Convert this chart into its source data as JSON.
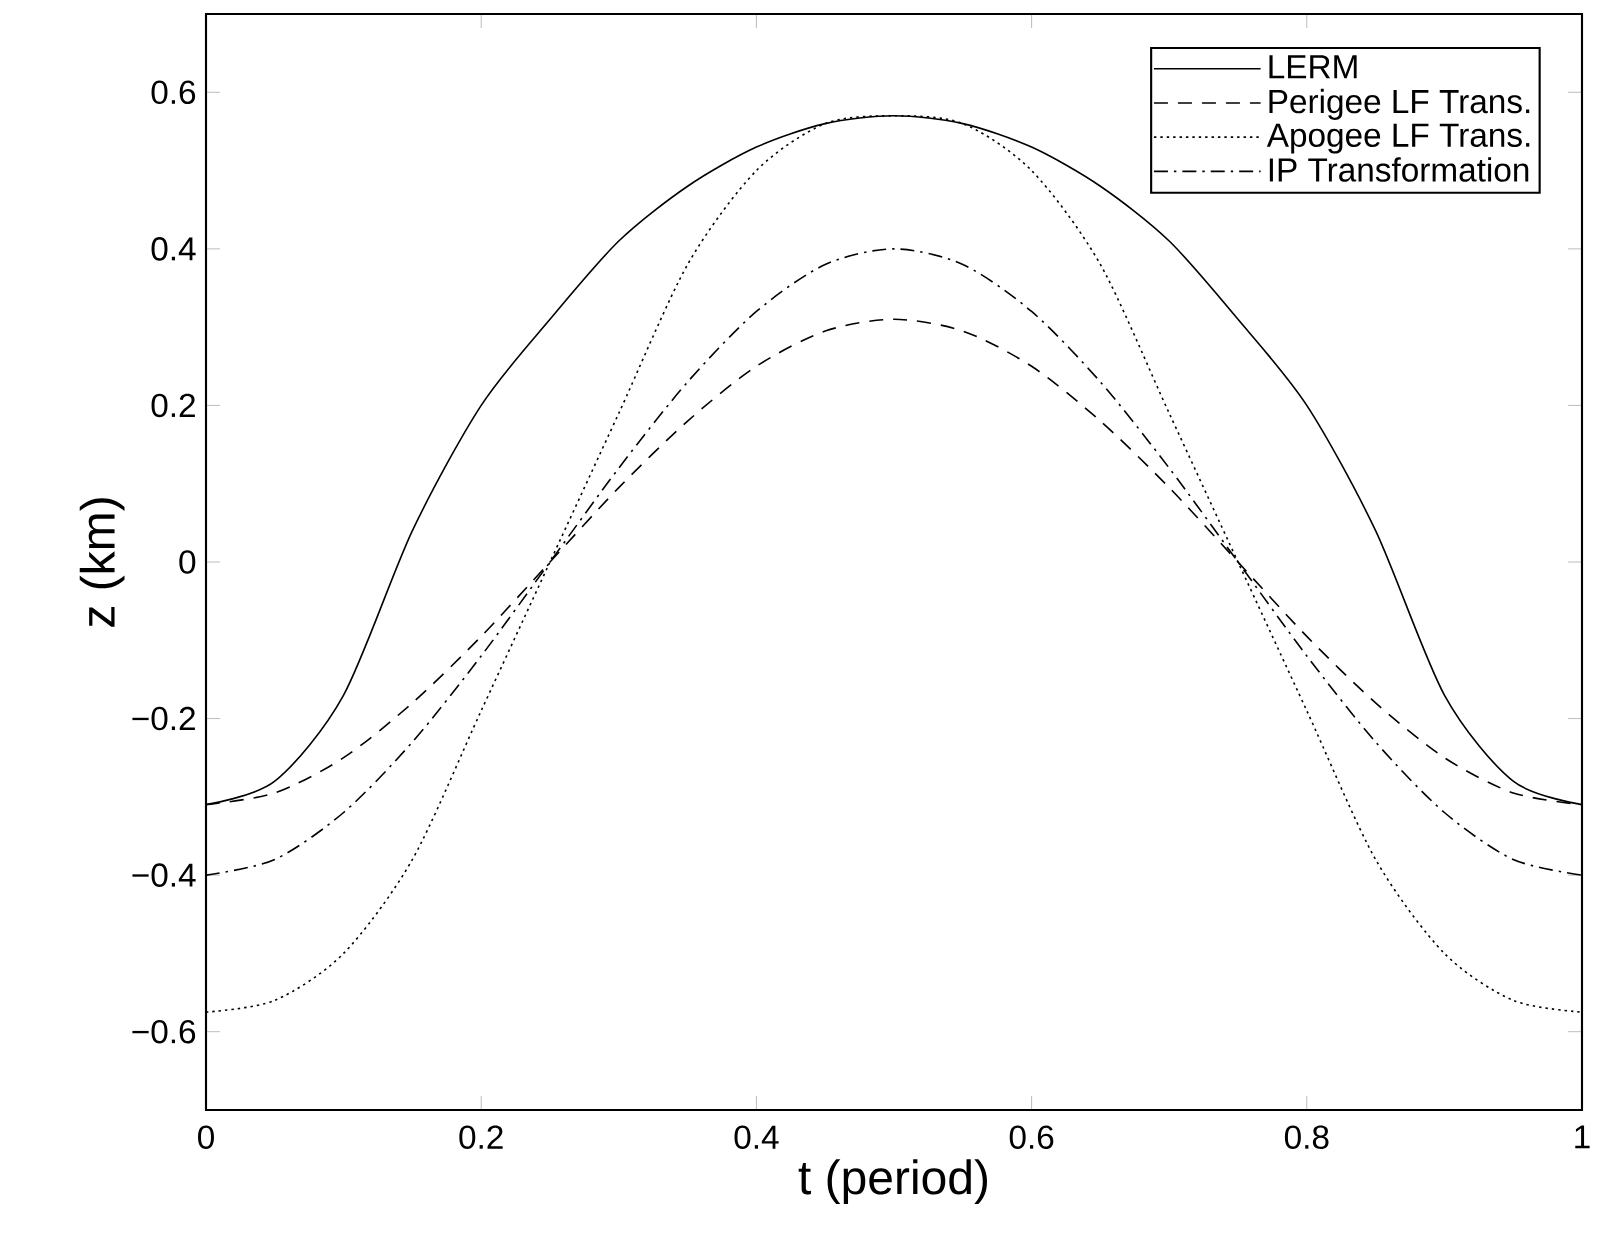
{
  "chart_data": {
    "type": "line",
    "xlabel": "t (period)",
    "ylabel": "z (km)",
    "x": [
      0,
      0.05,
      0.1,
      0.15,
      0.2,
      0.25,
      0.3,
      0.35,
      0.4,
      0.45,
      0.5,
      0.55,
      0.6,
      0.65,
      0.7,
      0.75,
      0.8,
      0.85,
      0.9,
      0.95,
      1
    ],
    "series": [
      {
        "name": "LERM",
        "color": "#000000",
        "line_style": "solid",
        "values": [
          -0.31,
          -0.28,
          -0.17,
          0.04,
          0.2,
          0.31,
          0.41,
          0.48,
          0.53,
          0.56,
          0.57,
          0.56,
          0.53,
          0.48,
          0.41,
          0.31,
          0.2,
          0.04,
          -0.17,
          -0.28,
          -0.31
        ]
      },
      {
        "name": "Perigee LF Trans.",
        "color": "#000000",
        "line_style": "dashed",
        "values": [
          -0.31,
          -0.295,
          -0.25,
          -0.18,
          -0.095,
          0,
          0.095,
          0.18,
          0.25,
          0.295,
          0.31,
          0.295,
          0.25,
          0.18,
          0.095,
          0,
          -0.095,
          -0.18,
          -0.25,
          -0.295,
          -0.31
        ]
      },
      {
        "name": "Apogee LF Trans.",
        "color": "#000000",
        "line_style": "dotted",
        "values": [
          -0.575,
          -0.56,
          -0.5,
          -0.38,
          -0.19,
          0,
          0.19,
          0.38,
          0.5,
          0.56,
          0.57,
          0.56,
          0.5,
          0.38,
          0.19,
          0,
          -0.19,
          -0.38,
          -0.5,
          -0.56,
          -0.575
        ]
      },
      {
        "name": "IP Transformation",
        "color": "#000000",
        "line_style": "dashdot",
        "values": [
          -0.4,
          -0.38,
          -0.32,
          -0.23,
          -0.12,
          0,
          0.12,
          0.23,
          0.32,
          0.38,
          0.4,
          0.38,
          0.32,
          0.23,
          0.12,
          0,
          -0.12,
          -0.23,
          -0.32,
          -0.38,
          -0.4
        ]
      }
    ],
    "xlim": [
      0,
      1
    ],
    "ylim": [
      -0.7,
      0.7
    ],
    "xticks": [
      0,
      0.2,
      0.4,
      0.6,
      0.8,
      1
    ],
    "yticks": [
      {
        "value": -0.6,
        "label": "−0.6"
      },
      {
        "value": -0.4,
        "label": "−0.4"
      },
      {
        "value": -0.2,
        "label": "−0.2"
      },
      0,
      0.2,
      0.4,
      0.6
    ],
    "grid": false,
    "legend": "top right",
    "marker": "none"
  }
}
